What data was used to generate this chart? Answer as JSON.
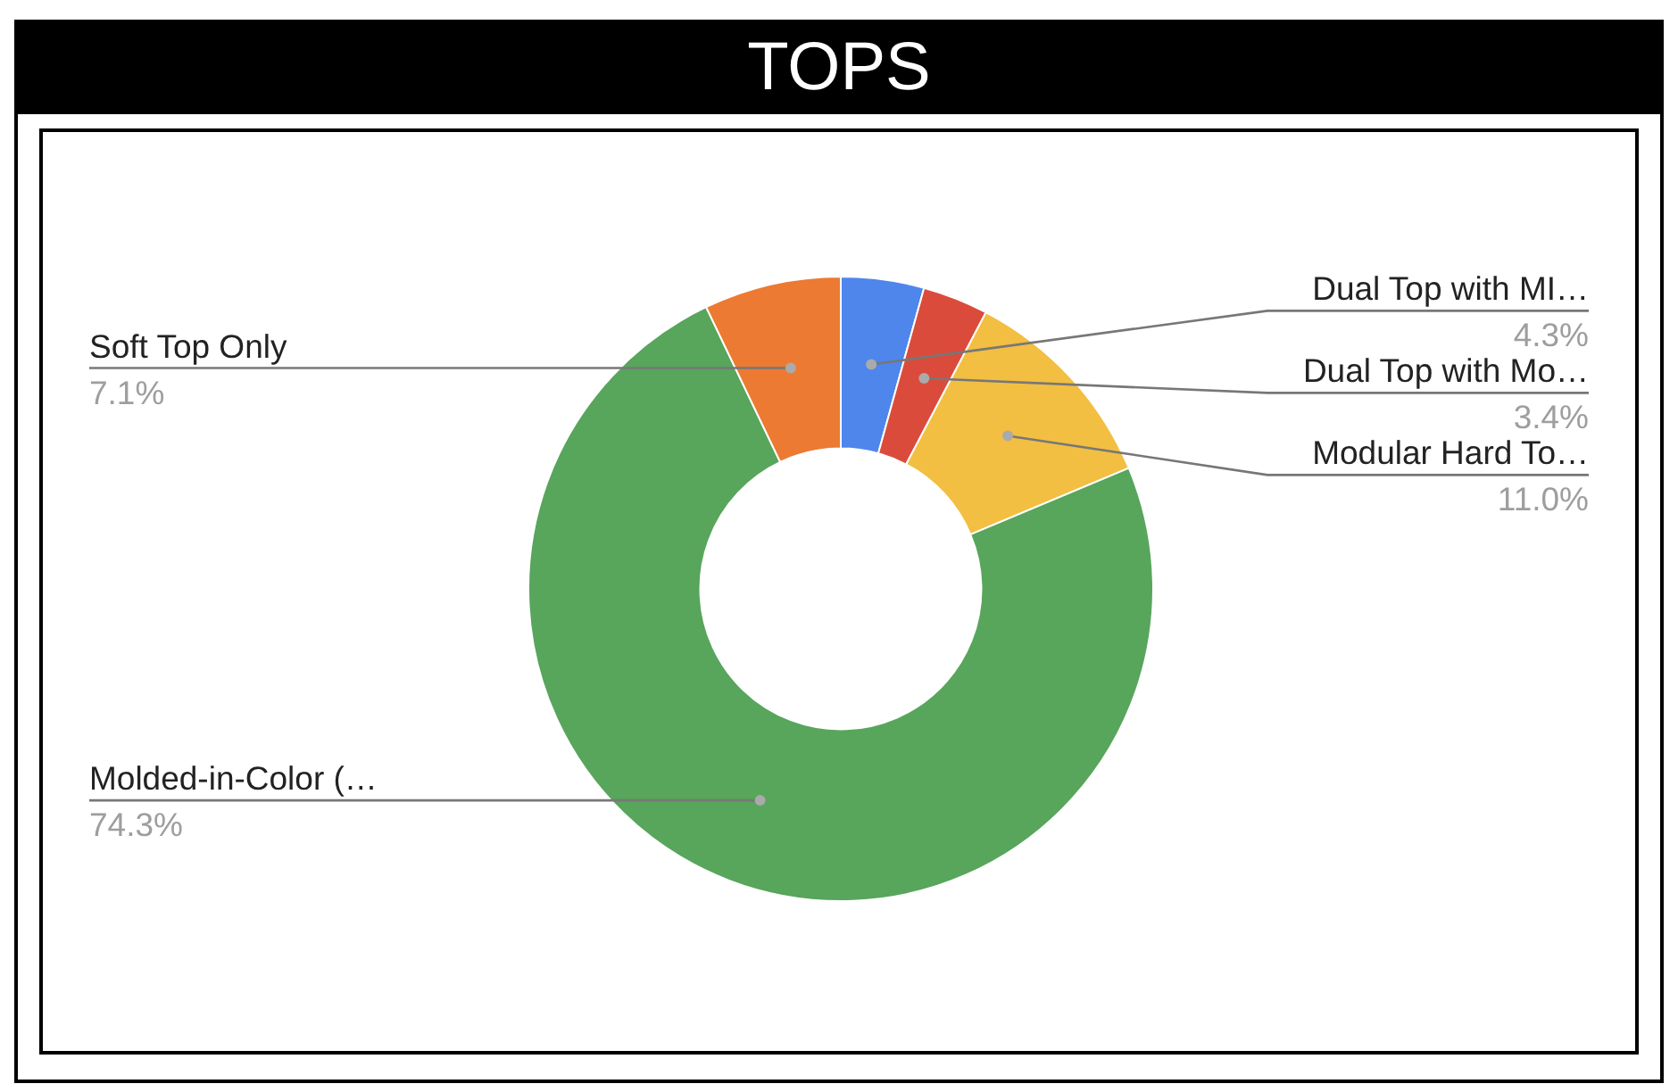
{
  "chart_data": {
    "type": "donut",
    "title": "TOPS",
    "categories": [
      "Dual Top with MI…",
      "Dual Top with Mo…",
      "Modular Hard To…",
      "Molded-in-Color (…",
      "Soft Top Only"
    ],
    "values": [
      4.3,
      3.4,
      11.0,
      74.3,
      7.1
    ],
    "colors": [
      "#4f86ec",
      "#db4b3c",
      "#f2bf42",
      "#58a55c",
      "#ec7a33"
    ],
    "value_labels": [
      "4.3%",
      "3.4%",
      "11.0%",
      "74.3%",
      "7.1%"
    ]
  }
}
